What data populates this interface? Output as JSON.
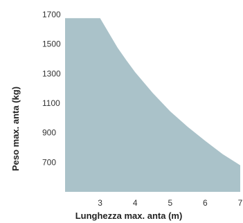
{
  "colors": {
    "area_fill": "#aac2c9",
    "tick_text": "#333333",
    "axis_title": "#222222"
  },
  "chart_data": {
    "type": "area",
    "title": "",
    "xlabel": "Lunghezza max. anta (m)",
    "ylabel": "Peso max. anta (kg)",
    "xlim": [
      2,
      7
    ],
    "ylim": [
      500,
      1700
    ],
    "x_ticks": [
      "3",
      "4",
      "5",
      "6",
      "7"
    ],
    "y_ticks": [
      "1700",
      "1500",
      "1300",
      "1100",
      "900",
      "700"
    ],
    "grid": false,
    "x": [
      2,
      3,
      3.25,
      3.5,
      3.75,
      4,
      4.5,
      5,
      5.5,
      6,
      6.5,
      7
    ],
    "y": [
      1675,
      1675,
      1575,
      1475,
      1390,
      1310,
      1170,
      1045,
      940,
      845,
      755,
      680
    ]
  }
}
